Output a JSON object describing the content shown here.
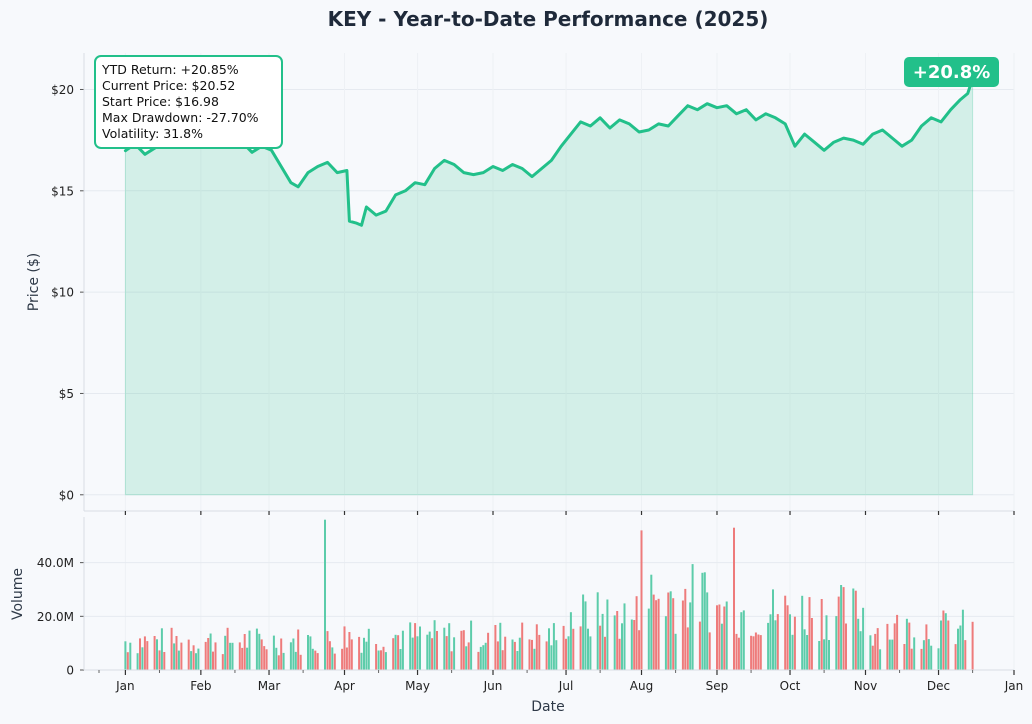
{
  "chart_data": [
    {
      "type": "area",
      "title": "KEY - Year-to-Date Performance (2025)",
      "ylabel": "Price ($)",
      "xlabel": "",
      "ylim": [
        -0.8,
        21.8
      ],
      "y_ticks": [
        0,
        5,
        10,
        15,
        20
      ],
      "y_tick_labels": [
        "$0",
        "$5",
        "$10",
        "$15",
        "$20"
      ],
      "grid": true,
      "color": "#22c08a",
      "series": [
        {
          "x": [
            "2025-01-01",
            "2025-01-05",
            "2025-01-09",
            "2025-01-13",
            "2025-01-17",
            "2025-01-21",
            "2025-01-25",
            "2025-01-29",
            "2025-02-02",
            "2025-02-06",
            "2025-02-10",
            "2025-02-14",
            "2025-02-18",
            "2025-02-22",
            "2025-02-26",
            "2025-03-02",
            "2025-03-06",
            "2025-03-10",
            "2025-03-13",
            "2025-03-17",
            "2025-03-21",
            "2025-03-25",
            "2025-03-29",
            "2025-04-02",
            "2025-04-03",
            "2025-04-06",
            "2025-04-08",
            "2025-04-10",
            "2025-04-14",
            "2025-04-18",
            "2025-04-22",
            "2025-04-26",
            "2025-04-30",
            "2025-05-04",
            "2025-05-08",
            "2025-05-12",
            "2025-05-16",
            "2025-05-20",
            "2025-05-24",
            "2025-05-28",
            "2025-06-01",
            "2025-06-05",
            "2025-06-09",
            "2025-06-13",
            "2025-06-17",
            "2025-06-21",
            "2025-06-25",
            "2025-06-29",
            "2025-07-03",
            "2025-07-07",
            "2025-07-11",
            "2025-07-15",
            "2025-07-19",
            "2025-07-23",
            "2025-07-27",
            "2025-07-31",
            "2025-08-04",
            "2025-08-08",
            "2025-08-12",
            "2025-08-16",
            "2025-08-20",
            "2025-08-24",
            "2025-08-28",
            "2025-09-01",
            "2025-09-05",
            "2025-09-09",
            "2025-09-13",
            "2025-09-17",
            "2025-09-21",
            "2025-09-25",
            "2025-09-29",
            "2025-10-03",
            "2025-10-07",
            "2025-10-11",
            "2025-10-15",
            "2025-10-19",
            "2025-10-23",
            "2025-10-27",
            "2025-10-31",
            "2025-11-04",
            "2025-11-08",
            "2025-11-12",
            "2025-11-16",
            "2025-11-20",
            "2025-11-24",
            "2025-11-28",
            "2025-12-02",
            "2025-12-06",
            "2025-12-10",
            "2025-12-13",
            "2025-12-15"
          ],
          "y": [
            16.98,
            17.3,
            16.8,
            17.1,
            17.4,
            17.6,
            17.3,
            17.7,
            17.5,
            17.8,
            17.6,
            17.9,
            17.4,
            16.9,
            17.2,
            17.0,
            16.2,
            15.4,
            15.2,
            15.9,
            16.2,
            16.4,
            15.9,
            16.0,
            13.5,
            13.4,
            13.3,
            14.2,
            13.8,
            14.0,
            14.8,
            15.0,
            15.4,
            15.3,
            16.1,
            16.5,
            16.3,
            15.9,
            15.8,
            15.9,
            16.2,
            16.0,
            16.3,
            16.1,
            15.7,
            16.1,
            16.5,
            17.2,
            17.8,
            18.4,
            18.2,
            18.6,
            18.1,
            18.5,
            18.3,
            17.9,
            18.0,
            18.3,
            18.2,
            18.7,
            19.2,
            19.0,
            19.3,
            19.1,
            19.2,
            18.8,
            19.0,
            18.5,
            18.8,
            18.6,
            18.3,
            17.2,
            17.8,
            17.4,
            17.0,
            17.4,
            17.6,
            17.5,
            17.3,
            17.8,
            18.0,
            17.6,
            17.2,
            17.5,
            18.2,
            18.6,
            18.4,
            19.0,
            19.5,
            19.8,
            20.52
          ]
        }
      ],
      "annotation_box": [
        "YTD Return: +20.85%",
        "Current Price: $20.52",
        "Start Price: $16.98",
        "Max Drawdown: -27.70%",
        "Volatility: 31.8%"
      ],
      "badge": "+20.8%"
    },
    {
      "type": "bar",
      "ylabel": "Volume",
      "xlabel": "Date",
      "ylim": [
        0,
        57000000
      ],
      "y_ticks": [
        0,
        20000000,
        40000000
      ],
      "y_tick_labels": [
        "0",
        "20.0M",
        "40.0M"
      ],
      "x_tick_labels": [
        "Jan",
        "Feb",
        "Mar",
        "Apr",
        "May",
        "Jun",
        "Jul",
        "Aug",
        "Sep",
        "Oct",
        "Nov",
        "Dec",
        "Jan"
      ],
      "x_tick_dates": [
        "2025-01-01",
        "2025-02-01",
        "2025-03-01",
        "2025-04-01",
        "2025-05-01",
        "2025-06-01",
        "2025-07-01",
        "2025-08-01",
        "2025-09-01",
        "2025-10-01",
        "2025-11-01",
        "2025-12-01",
        "2026-01-01"
      ],
      "colors": {
        "up": "#5cccaa",
        "down": "#ee7b7b"
      }
    }
  ]
}
